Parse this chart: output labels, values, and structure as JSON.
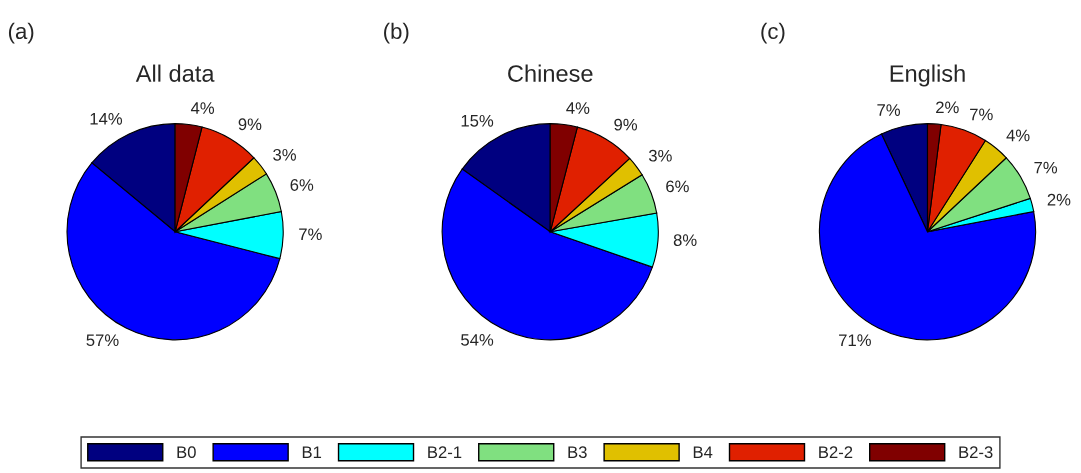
{
  "chart_data": [
    {
      "type": "pie",
      "title": "All data",
      "annotations": [
        "(a)"
      ],
      "legend": "bottom",
      "categories": [
        "B0",
        "B1",
        "B2-1",
        "B3",
        "B4",
        "B2-2",
        "B2-3"
      ],
      "values": [
        14,
        57,
        7,
        6,
        3,
        9,
        4
      ],
      "value_labels": [
        "14%",
        "57%",
        "7%",
        "6%",
        "3%",
        "9%",
        "4%"
      ],
      "colors": [
        "#000080",
        "#0000ff",
        "#00ffff",
        "#80e080",
        "#e0c000",
        "#e02000",
        "#800000"
      ]
    },
    {
      "type": "pie",
      "title": "Chinese",
      "annotations": [
        "(b)"
      ],
      "values": [
        15,
        54,
        8,
        6,
        3,
        9,
        4
      ],
      "value_labels": [
        "15%",
        "54%",
        "8%",
        "6%",
        "3%",
        "9%",
        "4%"
      ],
      "colors": [
        "#000080",
        "#0000ff",
        "#00ffff",
        "#80e080",
        "#e0c000",
        "#e02000",
        "#800000"
      ]
    },
    {
      "type": "pie",
      "title": "English",
      "annotations": [
        "(c)"
      ],
      "values": [
        7,
        71,
        2,
        7,
        4,
        7,
        2
      ],
      "value_labels": [
        "7%",
        "71%",
        "2%",
        "7%",
        "4%",
        "7%",
        "2%"
      ],
      "colors": [
        "#000080",
        "#0000ff",
        "#00ffff",
        "#80e080",
        "#e0c000",
        "#e02000",
        "#800000"
      ]
    }
  ]
}
